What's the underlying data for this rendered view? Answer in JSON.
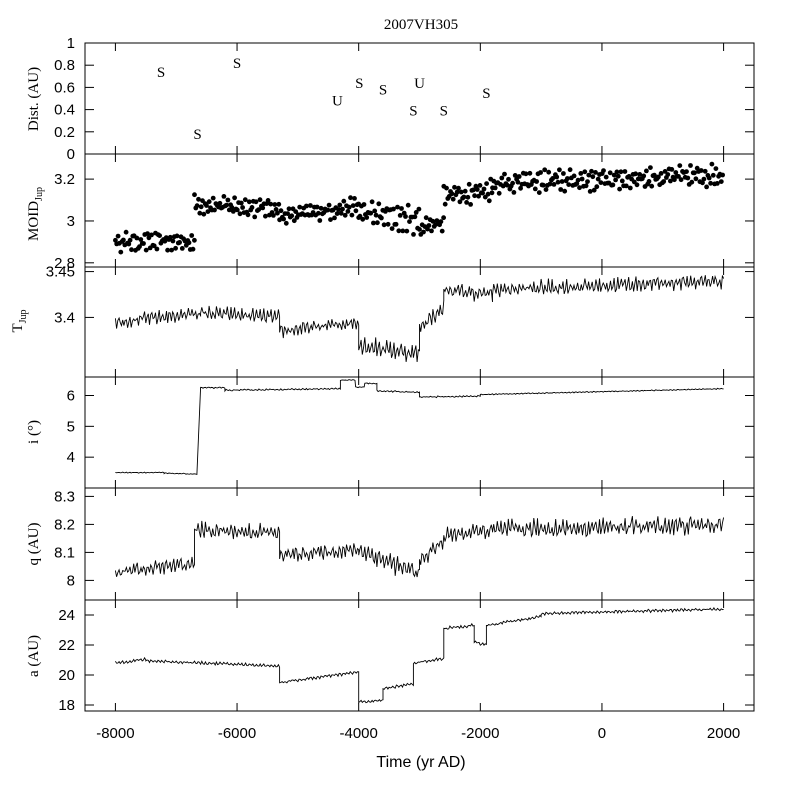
{
  "chart_data": {
    "type": "line",
    "title": "2007VH305",
    "xlabel": "Time (yr AD)",
    "xlim": [
      -8500,
      2500
    ],
    "x_ticks": [
      -8000,
      -6000,
      -4000,
      -2000,
      0,
      2000
    ],
    "panels": [
      {
        "id": "dist",
        "kind": "text_markers",
        "ylabel": "Dist. (AU)",
        "ylim": [
          0,
          1
        ],
        "ticks": [
          0,
          0.2,
          0.4,
          0.6,
          0.8,
          1
        ],
        "tick_labels": [
          "0",
          "0.2",
          "0.4",
          "0.6",
          "0.8",
          "1"
        ],
        "points": [
          {
            "t": -7250,
            "d": 0.74,
            "label": "S"
          },
          {
            "t": -6650,
            "d": 0.18,
            "label": "S"
          },
          {
            "t": -6000,
            "d": 0.82,
            "label": "S"
          },
          {
            "t": -4350,
            "d": 0.48,
            "label": "U"
          },
          {
            "t": -3990,
            "d": 0.64,
            "label": "S"
          },
          {
            "t": -3600,
            "d": 0.58,
            "label": "S"
          },
          {
            "t": -3100,
            "d": 0.39,
            "label": "S"
          },
          {
            "t": -3000,
            "d": 0.64,
            "label": "U"
          },
          {
            "t": -2600,
            "d": 0.39,
            "label": "S"
          },
          {
            "t": -1900,
            "d": 0.55,
            "label": "S"
          }
        ]
      },
      {
        "id": "moid",
        "kind": "scatter",
        "ylabel_main": "MOID",
        "ylabel_sub": "Jup",
        "ylim": [
          2.78,
          3.32
        ],
        "ticks": [
          2.8,
          3,
          3.2
        ],
        "tick_labels": [
          "2.8",
          "3",
          "3.2"
        ],
        "segments": [
          {
            "from": -8000,
            "to": -6700,
            "start": 2.9,
            "end": 2.9,
            "amp": 0.05
          },
          {
            "from": -6700,
            "to": -5300,
            "start": 3.08,
            "end": 3.06,
            "amp": 0.05
          },
          {
            "from": -5300,
            "to": -4000,
            "start": 3.02,
            "end": 3.07,
            "amp": 0.05
          },
          {
            "from": -4000,
            "to": -3000,
            "start": 3.04,
            "end": 3.0,
            "amp": 0.07
          },
          {
            "from": -3000,
            "to": -2600,
            "start": 2.97,
            "end": 3.0,
            "amp": 0.06
          },
          {
            "from": -2600,
            "to": -1800,
            "start": 3.12,
            "end": 3.15,
            "amp": 0.06
          },
          {
            "from": -1800,
            "to": 2000,
            "start": 3.18,
            "end": 3.22,
            "amp": 0.06
          }
        ]
      },
      {
        "id": "tjup",
        "kind": "line",
        "ylabel_main": "T",
        "ylabel_sub": "Jup",
        "ylim": [
          3.335,
          3.455
        ],
        "ticks": [
          3.4,
          3.45
        ],
        "tick_labels": [
          "3.4",
          "3.45"
        ],
        "segments": [
          {
            "from": -8000,
            "to": -6600,
            "start": 3.395,
            "end": 3.405,
            "amp": 0.009
          },
          {
            "from": -6600,
            "to": -5300,
            "start": 3.405,
            "end": 3.4,
            "amp": 0.009
          },
          {
            "from": -5300,
            "to": -4000,
            "start": 3.385,
            "end": 3.395,
            "amp": 0.009
          },
          {
            "from": -4000,
            "to": -3000,
            "start": 3.37,
            "end": 3.36,
            "amp": 0.012
          },
          {
            "from": -3000,
            "to": -2600,
            "start": 3.39,
            "end": 3.41,
            "amp": 0.01
          },
          {
            "from": -2600,
            "to": -1800,
            "start": 3.43,
            "end": 3.425,
            "amp": 0.01
          },
          {
            "from": -1800,
            "to": 2000,
            "start": 3.43,
            "end": 3.44,
            "amp": 0.01
          }
        ]
      },
      {
        "id": "incl",
        "kind": "line",
        "ylabel": "i (°)",
        "ylim": [
          3,
          6.6
        ],
        "ticks": [
          4,
          5,
          6
        ],
        "tick_labels": [
          "4",
          "5",
          "6"
        ],
        "segments": [
          {
            "from": -8000,
            "to": -7200,
            "start": 3.5,
            "end": 3.5,
            "amp": 0.02
          },
          {
            "from": -7200,
            "to": -6650,
            "start": 3.48,
            "end": 3.45,
            "amp": 0.02
          },
          {
            "from": -6600,
            "to": -6200,
            "start": 6.25,
            "end": 6.25,
            "amp": 0.03
          },
          {
            "from": -6200,
            "to": -4300,
            "start": 6.17,
            "end": 6.22,
            "amp": 0.03
          },
          {
            "from": -4300,
            "to": -4050,
            "start": 6.5,
            "end": 6.5,
            "amp": 0.02
          },
          {
            "from": -4050,
            "to": -3900,
            "start": 6.27,
            "end": 6.27,
            "amp": 0.02
          },
          {
            "from": -3900,
            "to": -3700,
            "start": 6.4,
            "end": 6.38,
            "amp": 0.02
          },
          {
            "from": -3700,
            "to": -3000,
            "start": 6.15,
            "end": 6.1,
            "amp": 0.03
          },
          {
            "from": -3000,
            "to": -2000,
            "start": 5.95,
            "end": 5.98,
            "amp": 0.03
          },
          {
            "from": -2000,
            "to": 2000,
            "start": 6.03,
            "end": 6.22,
            "amp": 0.02
          }
        ]
      },
      {
        "id": "q",
        "kind": "line",
        "ylabel": "q (AU)",
        "ylim": [
          7.93,
          8.33
        ],
        "ticks": [
          8,
          8.1,
          8.2,
          8.3
        ],
        "tick_labels": [
          "8",
          "8.1",
          "8.2",
          "8.3"
        ],
        "segments": [
          {
            "from": -8000,
            "to": -6700,
            "start": 8.03,
            "end": 8.06,
            "amp": 0.03
          },
          {
            "from": -6700,
            "to": -5300,
            "start": 8.18,
            "end": 8.17,
            "amp": 0.035
          },
          {
            "from": -5300,
            "to": -4000,
            "start": 8.09,
            "end": 8.11,
            "amp": 0.03
          },
          {
            "from": -4000,
            "to": -3000,
            "start": 8.11,
            "end": 8.02,
            "amp": 0.045
          },
          {
            "from": -3000,
            "to": -2600,
            "start": 8.07,
            "end": 8.14,
            "amp": 0.035
          },
          {
            "from": -2600,
            "to": -1800,
            "start": 8.16,
            "end": 8.18,
            "amp": 0.035
          },
          {
            "from": -1800,
            "to": 2000,
            "start": 8.18,
            "end": 8.2,
            "amp": 0.04
          }
        ]
      },
      {
        "id": "a",
        "kind": "line",
        "ylabel": "a (AU)",
        "ylim": [
          17.6,
          25
        ],
        "ticks": [
          18,
          20,
          22,
          24
        ],
        "tick_labels": [
          "18",
          "20",
          "22",
          "24"
        ],
        "segments": [
          {
            "from": -8000,
            "to": -7500,
            "start": 20.8,
            "end": 21.05,
            "amp": 0.12
          },
          {
            "from": -7500,
            "to": -5300,
            "start": 20.95,
            "end": 20.6,
            "amp": 0.12
          },
          {
            "from": -5300,
            "to": -4000,
            "start": 19.5,
            "end": 20.2,
            "amp": 0.12
          },
          {
            "from": -4000,
            "to": -3600,
            "start": 18.2,
            "end": 18.3,
            "amp": 0.12
          },
          {
            "from": -3600,
            "to": -3100,
            "start": 19.1,
            "end": 19.4,
            "amp": 0.12
          },
          {
            "from": -3100,
            "to": -2600,
            "start": 20.8,
            "end": 21.1,
            "amp": 0.12
          },
          {
            "from": -2600,
            "to": -2100,
            "start": 23.1,
            "end": 23.3,
            "amp": 0.15
          },
          {
            "from": -2100,
            "to": -1900,
            "start": 22.2,
            "end": 22.0,
            "amp": 0.12
          },
          {
            "from": -1900,
            "to": -1000,
            "start": 23.3,
            "end": 23.9,
            "amp": 0.12
          },
          {
            "from": -1000,
            "to": 2000,
            "start": 24.1,
            "end": 24.4,
            "amp": 0.12
          }
        ]
      }
    ]
  }
}
